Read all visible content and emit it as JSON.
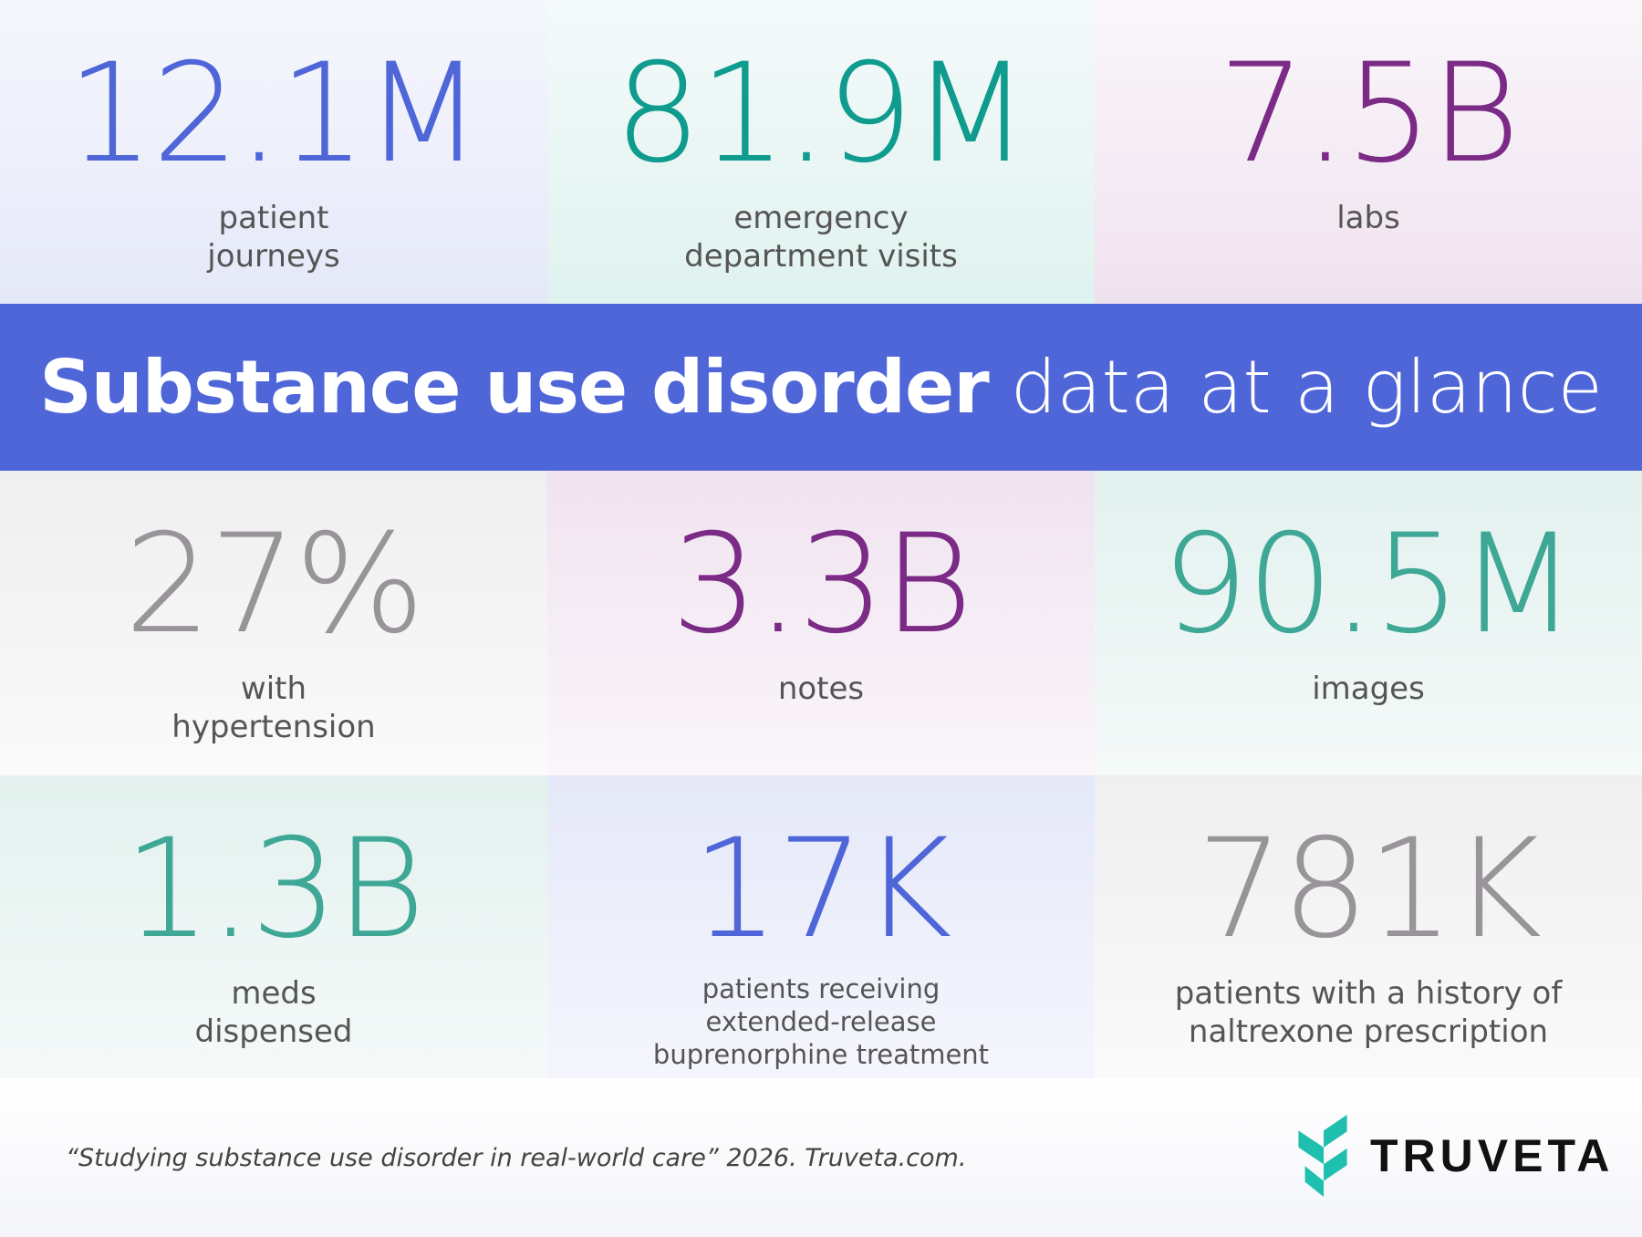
{
  "colors": {
    "blue": "#4f66d8",
    "teal": "#0f9b8e",
    "purple": "#7b2a86",
    "gray": "#989499",
    "green": "#3fa796",
    "brand_teal": "#1fbfb0"
  },
  "stats": [
    {
      "value": "12.1M",
      "label": [
        "patient",
        "journeys"
      ]
    },
    {
      "value": "81.9M",
      "label": [
        "emergency",
        "department visits"
      ]
    },
    {
      "value": "7.5B",
      "label": [
        "labs"
      ]
    },
    {
      "value": "27%",
      "label": [
        "with",
        "hypertension"
      ]
    },
    {
      "value": "3.3B",
      "label": [
        "notes"
      ]
    },
    {
      "value": "90.5M",
      "label": [
        "images"
      ]
    },
    {
      "value": "1.3B",
      "label": [
        "meds",
        "dispensed"
      ]
    },
    {
      "value": "17K",
      "label": [
        "patients receiving",
        "extended-release",
        "buprenorphine treatment"
      ]
    },
    {
      "value": "781K",
      "label": [
        "patients with a history of",
        "naltrexone prescription"
      ]
    }
  ],
  "banner": {
    "bold": "Substance use disorder",
    "light": "data at a glance"
  },
  "footer": {
    "citation": "“Studying substance use disorder in real-world care” 2026. Truveta.com.",
    "logo_text": "TRUVETA",
    "logo_icon": "truveta-leaf-icon"
  }
}
